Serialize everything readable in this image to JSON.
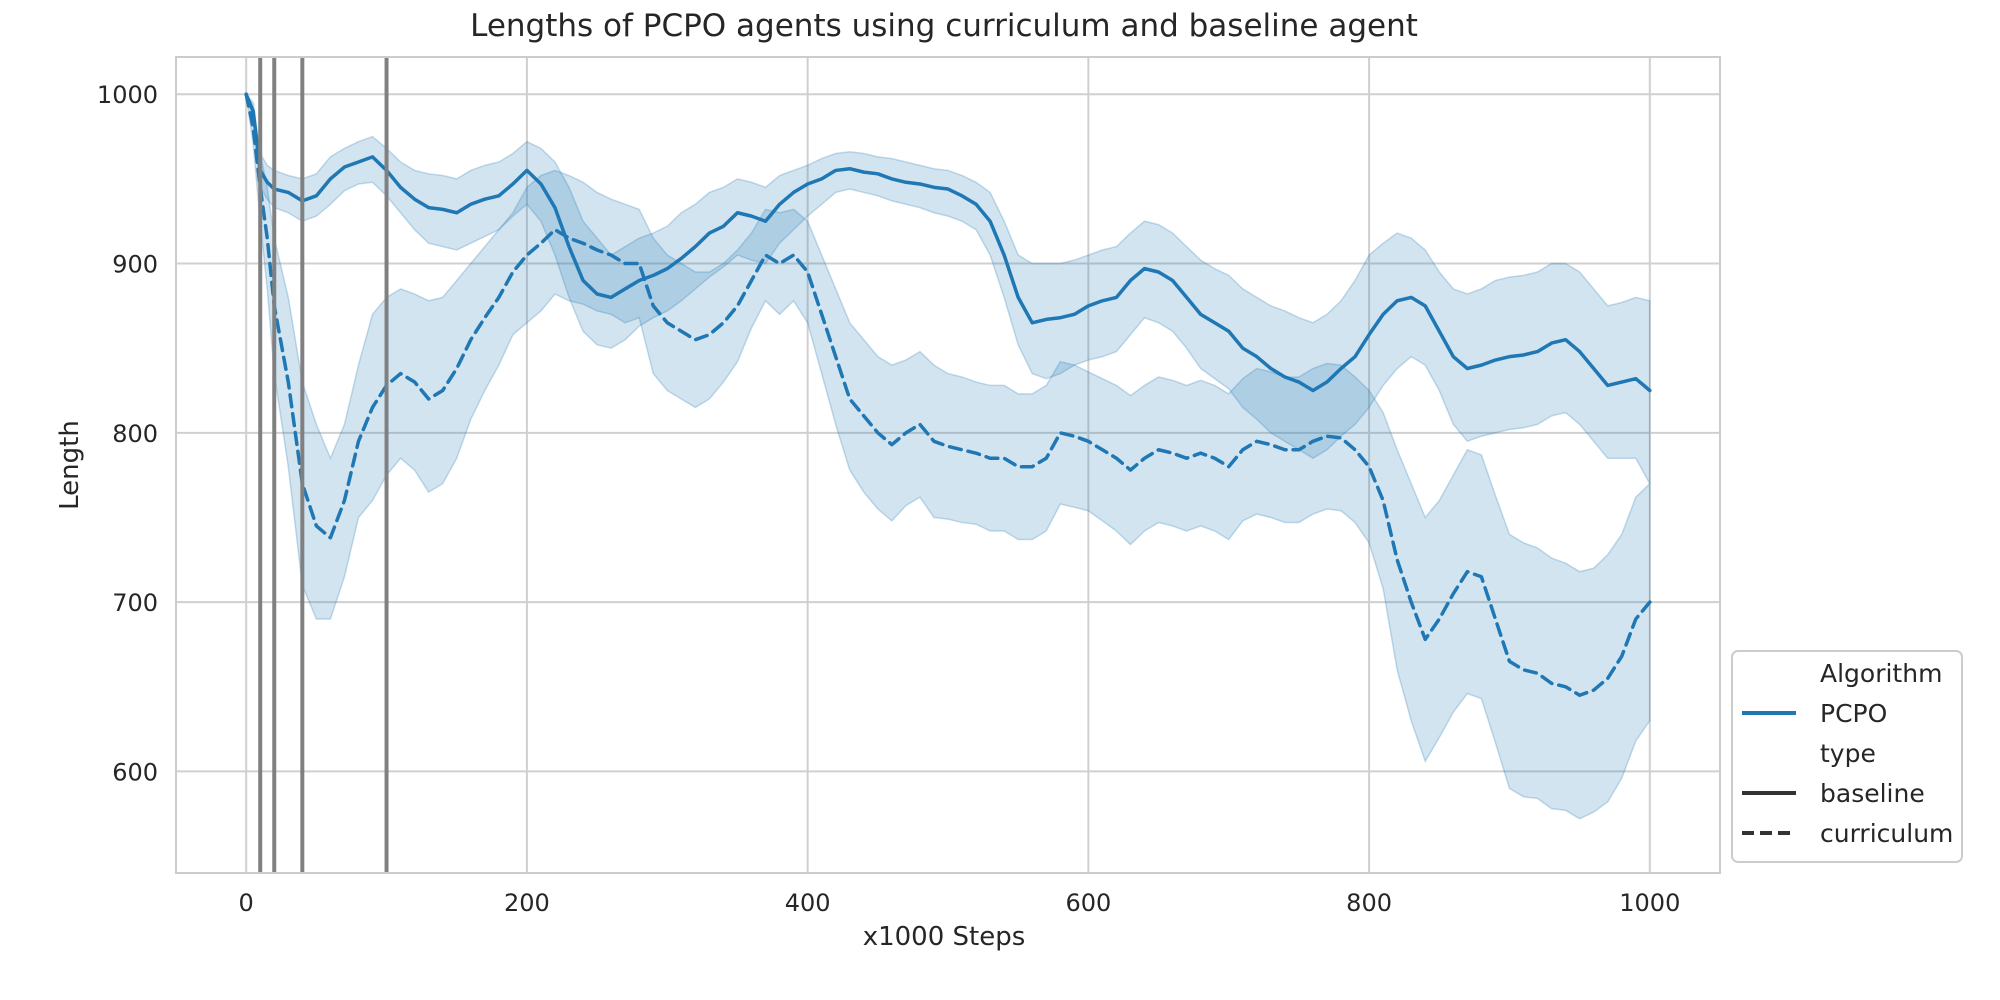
{
  "chart_data": {
    "type": "line",
    "title": "Lengths of PCPO agents using curriculum and baseline agent",
    "xlabel": "x1000 Steps",
    "ylabel": "Length",
    "xlim": [
      -50,
      1050
    ],
    "ylim": [
      540,
      1022
    ],
    "xticks": [
      0,
      200,
      400,
      600,
      800,
      1000
    ],
    "yticks": [
      600,
      700,
      800,
      900,
      1000
    ],
    "xtick_labels": [
      "0",
      "200",
      "400",
      "600",
      "800",
      "1000"
    ],
    "ytick_labels": [
      "600",
      "700",
      "800",
      "900",
      "1000"
    ],
    "grid": true,
    "vertical_lines": [
      10,
      20,
      40,
      100
    ],
    "colors": {
      "line": "#1f77b4",
      "band": "#1f77b4",
      "vline": "#808080",
      "grid": "#d0d0d0",
      "spine": "#cccccc",
      "legend_key": "#333333"
    },
    "legend": {
      "placement": "lower-right, outside",
      "entries": [
        {
          "label": "Algorithm",
          "kind": "header"
        },
        {
          "label": "PCPO",
          "kind": "color"
        },
        {
          "label": "type",
          "kind": "header"
        },
        {
          "label": "baseline",
          "kind": "solid"
        },
        {
          "label": "curriculum",
          "kind": "dashed"
        }
      ]
    },
    "series": [
      {
        "style": "solid",
        "x": [
          0,
          5,
          10,
          15,
          20,
          30,
          40,
          50,
          60,
          70,
          80,
          90,
          100,
          110,
          120,
          130,
          140,
          150,
          160,
          170,
          180,
          190,
          200,
          210,
          220,
          230,
          240,
          250,
          260,
          270,
          280,
          290,
          300,
          310,
          320,
          330,
          340,
          350,
          360,
          370,
          380,
          390,
          400,
          410,
          420,
          430,
          440,
          450,
          460,
          470,
          480,
          490,
          500,
          510,
          520,
          530,
          540,
          550,
          560,
          570,
          580,
          590,
          600,
          610,
          620,
          630,
          640,
          650,
          660,
          670,
          680,
          690,
          700,
          710,
          720,
          730,
          740,
          750,
          760,
          770,
          780,
          790,
          800,
          810,
          820,
          830,
          840,
          850,
          860,
          870,
          880,
          890,
          900,
          910,
          920,
          930,
          940,
          950,
          960,
          970,
          980,
          990,
          1000
        ],
        "y": [
          1000,
          990,
          955,
          948,
          944,
          942,
          937,
          940,
          950,
          957,
          960,
          963,
          955,
          945,
          938,
          933,
          932,
          930,
          935,
          938,
          940,
          947,
          955,
          947,
          933,
          910,
          890,
          882,
          880,
          885,
          890,
          893,
          897,
          903,
          910,
          918,
          922,
          930,
          928,
          925,
          935,
          942,
          947,
          950,
          955,
          956,
          954,
          953,
          950,
          948,
          947,
          945,
          944,
          940,
          935,
          925,
          905,
          880,
          865,
          867,
          868,
          870,
          875,
          878,
          880,
          890,
          897,
          895,
          890,
          880,
          870,
          865,
          860,
          850,
          845,
          838,
          833,
          830,
          825,
          830,
          838,
          845,
          858,
          870,
          878,
          880,
          875,
          860,
          845,
          838,
          840,
          843,
          845,
          846,
          848,
          853,
          855,
          848,
          838,
          828,
          830,
          832,
          825
        ],
        "band_upper": [
          1000,
          995,
          965,
          958,
          955,
          952,
          950,
          953,
          963,
          968,
          972,
          975,
          968,
          960,
          955,
          953,
          952,
          950,
          955,
          958,
          960,
          965,
          972,
          968,
          960,
          945,
          925,
          915,
          905,
          910,
          915,
          918,
          922,
          930,
          935,
          942,
          945,
          950,
          948,
          945,
          952,
          955,
          958,
          962,
          965,
          966,
          965,
          963,
          962,
          960,
          958,
          956,
          955,
          952,
          948,
          942,
          925,
          905,
          900,
          900,
          900,
          902,
          905,
          908,
          910,
          918,
          925,
          923,
          918,
          910,
          902,
          897,
          893,
          885,
          880,
          875,
          872,
          868,
          865,
          870,
          878,
          890,
          905,
          912,
          918,
          915,
          908,
          895,
          885,
          882,
          885,
          890,
          892,
          893,
          895,
          900,
          900,
          895,
          885,
          875,
          877,
          880,
          878
        ],
        "band_lower": [
          1000,
          985,
          945,
          938,
          933,
          930,
          925,
          928,
          935,
          943,
          947,
          948,
          940,
          930,
          920,
          912,
          910,
          908,
          912,
          916,
          920,
          928,
          935,
          925,
          905,
          880,
          860,
          852,
          850,
          855,
          863,
          868,
          872,
          878,
          885,
          892,
          898,
          905,
          902,
          900,
          912,
          920,
          928,
          935,
          942,
          944,
          942,
          940,
          937,
          935,
          933,
          930,
          928,
          925,
          920,
          905,
          880,
          852,
          835,
          832,
          835,
          840,
          843,
          845,
          848,
          858,
          868,
          865,
          860,
          850,
          838,
          832,
          826,
          815,
          808,
          800,
          795,
          790,
          785,
          790,
          798,
          805,
          815,
          828,
          838,
          845,
          840,
          825,
          805,
          795,
          798,
          800,
          802,
          803,
          805,
          810,
          812,
          805,
          795,
          785,
          785,
          785,
          770
        ]
      },
      {
        "style": "dashed",
        "x": [
          0,
          5,
          10,
          15,
          20,
          30,
          40,
          50,
          60,
          70,
          80,
          90,
          100,
          110,
          120,
          130,
          140,
          150,
          160,
          170,
          180,
          190,
          200,
          210,
          220,
          230,
          240,
          250,
          260,
          270,
          280,
          290,
          300,
          310,
          320,
          330,
          340,
          350,
          360,
          370,
          380,
          390,
          400,
          410,
          420,
          430,
          440,
          450,
          460,
          470,
          480,
          490,
          500,
          510,
          520,
          530,
          540,
          550,
          560,
          570,
          580,
          590,
          600,
          610,
          620,
          630,
          640,
          650,
          660,
          670,
          680,
          690,
          700,
          710,
          720,
          730,
          740,
          750,
          760,
          770,
          780,
          790,
          800,
          810,
          820,
          830,
          840,
          850,
          860,
          870,
          880,
          890,
          900,
          910,
          920,
          930,
          940,
          950,
          960,
          970,
          980,
          990,
          1000
        ],
        "y": [
          1000,
          980,
          945,
          915,
          875,
          830,
          770,
          745,
          738,
          760,
          795,
          815,
          828,
          835,
          830,
          820,
          825,
          838,
          855,
          868,
          880,
          895,
          905,
          912,
          920,
          915,
          912,
          908,
          905,
          900,
          900,
          875,
          865,
          860,
          855,
          858,
          865,
          875,
          890,
          905,
          900,
          905,
          895,
          870,
          845,
          820,
          810,
          800,
          793,
          800,
          805,
          795,
          792,
          790,
          788,
          785,
          785,
          780,
          780,
          785,
          800,
          798,
          795,
          790,
          785,
          778,
          785,
          790,
          788,
          785,
          788,
          785,
          780,
          790,
          795,
          793,
          790,
          790,
          795,
          798,
          797,
          790,
          780,
          760,
          725,
          700,
          678,
          690,
          705,
          718,
          715,
          690,
          665,
          660,
          658,
          652,
          650,
          645,
          648,
          655,
          668,
          690,
          700
        ],
        "band_upper": [
          1000,
          990,
          965,
          945,
          915,
          880,
          830,
          805,
          785,
          805,
          840,
          870,
          880,
          885,
          882,
          878,
          880,
          890,
          900,
          910,
          920,
          930,
          945,
          952,
          955,
          952,
          948,
          942,
          938,
          935,
          932,
          915,
          905,
          900,
          895,
          895,
          900,
          908,
          918,
          932,
          930,
          932,
          925,
          905,
          885,
          865,
          855,
          845,
          840,
          843,
          848,
          840,
          835,
          833,
          830,
          828,
          828,
          823,
          823,
          828,
          842,
          840,
          836,
          832,
          828,
          822,
          828,
          833,
          831,
          828,
          831,
          828,
          823,
          832,
          838,
          836,
          833,
          833,
          838,
          841,
          840,
          833,
          825,
          812,
          790,
          770,
          750,
          760,
          775,
          790,
          787,
          763,
          740,
          735,
          732,
          726,
          723,
          718,
          720,
          728,
          740,
          762,
          770
        ],
        "band_lower": [
          1000,
          970,
          925,
          885,
          835,
          780,
          710,
          690,
          690,
          715,
          750,
          760,
          775,
          785,
          778,
          765,
          770,
          785,
          808,
          825,
          840,
          858,
          865,
          872,
          882,
          878,
          876,
          872,
          870,
          865,
          868,
          835,
          825,
          820,
          815,
          820,
          830,
          842,
          862,
          878,
          870,
          878,
          865,
          835,
          805,
          778,
          765,
          755,
          748,
          757,
          762,
          750,
          749,
          747,
          746,
          742,
          742,
          737,
          737,
          742,
          758,
          756,
          754,
          748,
          742,
          734,
          742,
          747,
          745,
          742,
          745,
          742,
          737,
          748,
          752,
          750,
          747,
          747,
          752,
          755,
          754,
          747,
          735,
          708,
          660,
          630,
          606,
          620,
          635,
          646,
          643,
          617,
          590,
          585,
          584,
          578,
          577,
          572,
          576,
          582,
          596,
          618,
          630
        ]
      }
    ]
  }
}
